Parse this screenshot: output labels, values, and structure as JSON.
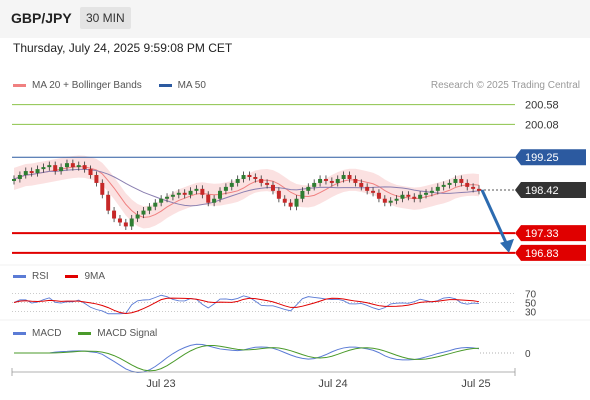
{
  "header": {
    "symbol": "GBP/JPY",
    "timeframe": "30 MIN"
  },
  "datetime": "Thursday, July 24, 2025 9:59:08 PM CET",
  "legends": {
    "price": [
      {
        "label": "MA 20 + Bollinger Bands",
        "color": "#f08080"
      },
      {
        "label": "MA 50",
        "color": "#2c5aa0"
      }
    ],
    "rsi": [
      {
        "label": "RSI",
        "color": "#5b7bd5"
      },
      {
        "label": "9MA",
        "color": "#e00000"
      }
    ],
    "macd": [
      {
        "label": "MACD",
        "color": "#5b7bd5"
      },
      {
        "label": "MACD Signal",
        "color": "#4a9a2a"
      }
    ]
  },
  "credit": "Research © 2025 Trading Central",
  "colors": {
    "up": "#2e7d32",
    "down": "#c62828",
    "support": "#e00000",
    "resistance": "#2c5aa0",
    "target": "#8bc34a",
    "arrow": "#2c6bb0"
  },
  "chart_data": {
    "type": "candlestick",
    "price_range": [
      196.6,
      200.9
    ],
    "price_levels": [
      {
        "value": 200.58,
        "label": "200.58",
        "kind": "target"
      },
      {
        "value": 200.08,
        "label": "200.08",
        "kind": "target"
      },
      {
        "value": 199.25,
        "label": "199.25",
        "kind": "resistance"
      },
      {
        "value": 198.42,
        "label": "198.42",
        "kind": "last"
      },
      {
        "value": 197.33,
        "label": "197.33",
        "kind": "support"
      },
      {
        "value": 196.83,
        "label": "196.83",
        "kind": "support"
      }
    ],
    "forecast_arrow": {
      "from": 198.42,
      "to": 196.83
    },
    "closes": [
      198.7,
      198.8,
      198.9,
      198.85,
      198.95,
      199.0,
      199.05,
      198.9,
      199.0,
      199.1,
      199.0,
      199.05,
      198.95,
      198.8,
      198.6,
      198.3,
      197.9,
      197.7,
      197.6,
      197.5,
      197.7,
      197.8,
      197.9,
      198.0,
      198.1,
      198.2,
      198.25,
      198.3,
      198.35,
      198.3,
      198.4,
      198.45,
      198.3,
      198.1,
      198.2,
      198.4,
      198.5,
      198.6,
      198.7,
      198.8,
      198.75,
      198.7,
      198.6,
      198.55,
      198.4,
      198.2,
      198.1,
      198.0,
      198.2,
      198.4,
      198.5,
      198.6,
      198.7,
      198.65,
      198.6,
      198.7,
      198.8,
      198.7,
      198.6,
      198.5,
      198.4,
      198.35,
      198.2,
      198.1,
      198.15,
      198.2,
      198.3,
      198.25,
      198.2,
      198.3,
      198.35,
      198.4,
      198.5,
      198.55,
      198.6,
      198.7,
      198.6,
      198.5,
      198.45,
      198.4
    ],
    "rsi": {
      "ticks": [
        "70",
        "50",
        "30"
      ],
      "range": [
        20,
        80
      ]
    },
    "macd": {
      "zero_label": "0"
    },
    "x_labels": [
      "Jul 23",
      "Jul 24",
      "Jul 25"
    ]
  }
}
